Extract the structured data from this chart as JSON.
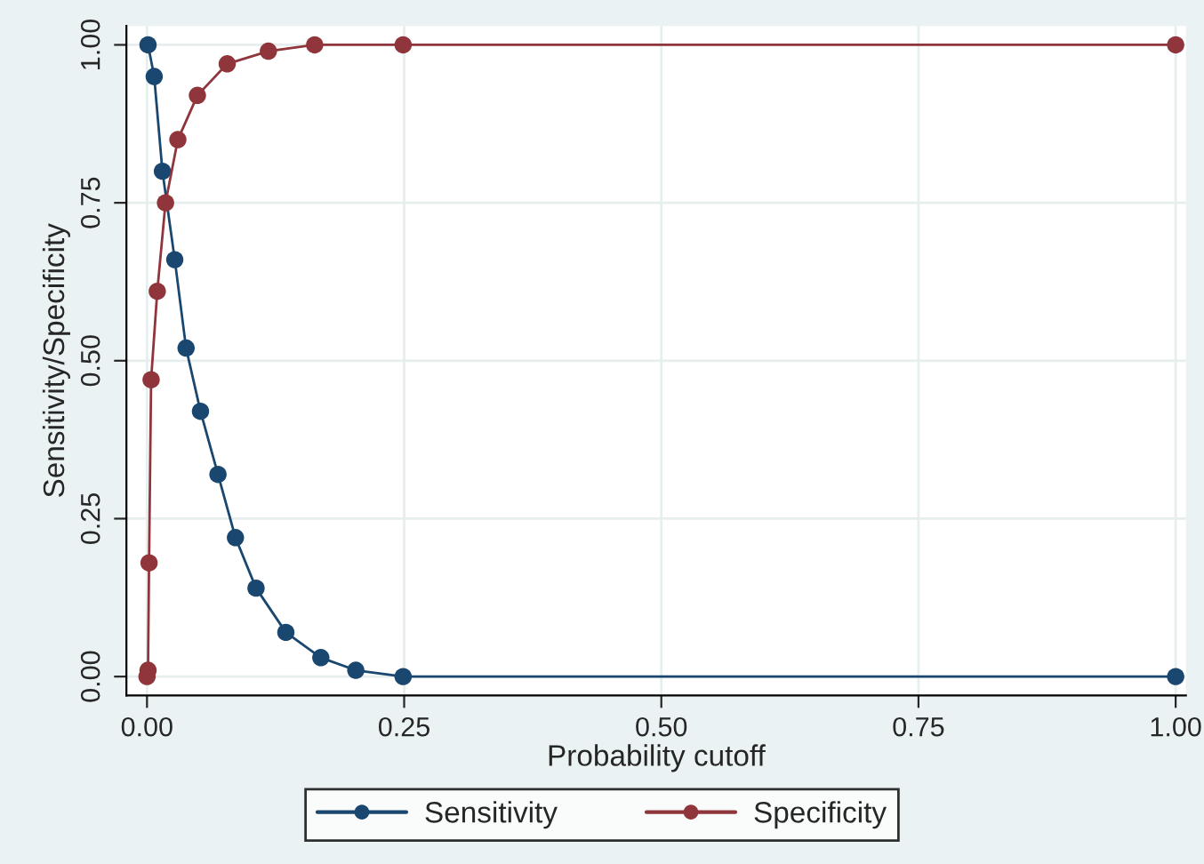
{
  "chart_data": {
    "type": "line",
    "xlabel": "Probability cutoff",
    "ylabel": "Sensitivity/Specificity",
    "xlim": [
      -0.02,
      1.01
    ],
    "ylim": [
      -0.03,
      1.03
    ],
    "xticks": [
      {
        "value": 0,
        "label": "0.00"
      },
      {
        "value": 0.25,
        "label": "0.25"
      },
      {
        "value": 0.5,
        "label": "0.50"
      },
      {
        "value": 0.75,
        "label": "0.75"
      },
      {
        "value": 1,
        "label": "1.00"
      }
    ],
    "yticks": [
      {
        "value": 0,
        "label": "0.00"
      },
      {
        "value": 0.25,
        "label": "0.25"
      },
      {
        "value": 0.5,
        "label": "0.50"
      },
      {
        "value": 0.75,
        "label": "0.75"
      },
      {
        "value": 1,
        "label": "1.00"
      }
    ],
    "grid": true,
    "legend": "bottom",
    "marker": "circle",
    "line_style": "solid",
    "series": [
      {
        "name": "Sensitivity",
        "color": "#1a476f",
        "x": [
          0.001,
          0.007,
          0.015,
          0.027,
          0.038,
          0.052,
          0.069,
          0.086,
          0.106,
          0.135,
          0.169,
          0.203,
          0.249,
          1
        ],
        "values": [
          1,
          0.95,
          0.8,
          0.66,
          0.52,
          0.42,
          0.32,
          0.22,
          0.14,
          0.07,
          0.03,
          0.01,
          0,
          0
        ]
      },
      {
        "name": "Specificity",
        "color": "#90353b",
        "x": [
          0,
          0.001,
          0.002,
          0.004,
          0.01,
          0.018,
          0.03,
          0.049,
          0.078,
          0.118,
          0.163,
          0.249,
          1
        ],
        "values": [
          0,
          0.01,
          0.18,
          0.47,
          0.61,
          0.75,
          0.85,
          0.92,
          0.97,
          0.99,
          1,
          1,
          1
        ]
      }
    ]
  }
}
